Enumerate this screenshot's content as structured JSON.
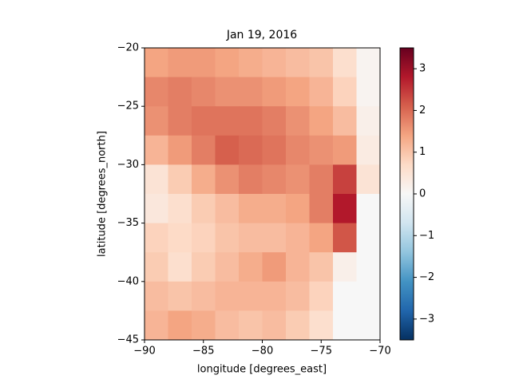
{
  "chart_data": {
    "type": "heatmap",
    "title": "Jan 19, 2016",
    "x_label": "longitude [degrees_east]",
    "y_label": "latitude [degrees_north]",
    "x_edges": [
      -90,
      -88,
      -86,
      -84,
      -82,
      -80,
      -78,
      -76,
      -74,
      -72,
      -70
    ],
    "y_edges": [
      -20,
      -22.5,
      -25,
      -27.5,
      -30,
      -32.5,
      -35,
      -37.5,
      -40,
      -42.5,
      -45
    ],
    "values": [
      [
        1.4,
        1.5,
        1.5,
        1.4,
        1.3,
        1.2,
        1.1,
        1.0,
        0.6,
        0.1
      ],
      [
        1.7,
        1.8,
        1.7,
        1.6,
        1.6,
        1.5,
        1.4,
        1.2,
        0.8,
        0.1
      ],
      [
        1.6,
        1.8,
        1.9,
        1.9,
        1.9,
        1.8,
        1.6,
        1.4,
        1.1,
        0.2
      ],
      [
        1.2,
        1.5,
        1.8,
        2.1,
        2.0,
        1.9,
        1.7,
        1.6,
        1.5,
        0.3
      ],
      [
        0.5,
        0.9,
        1.3,
        1.6,
        1.8,
        1.7,
        1.6,
        1.8,
        2.4,
        0.5
      ],
      [
        0.4,
        0.6,
        0.9,
        1.1,
        1.3,
        1.3,
        1.4,
        1.8,
        2.8,
        0
      ],
      [
        0.8,
        0.7,
        0.8,
        1.0,
        1.1,
        1.1,
        1.2,
        1.4,
        2.2,
        0
      ],
      [
        0.9,
        0.6,
        0.9,
        1.1,
        1.3,
        1.5,
        1.2,
        1.0,
        0.2,
        0
      ],
      [
        1.1,
        1.0,
        1.1,
        1.2,
        1.2,
        1.2,
        1.1,
        0.8,
        0,
        0
      ],
      [
        1.2,
        1.4,
        1.3,
        1.1,
        1.0,
        1.1,
        0.9,
        0.6,
        0,
        0
      ]
    ],
    "colormap": "RdBu_r",
    "xlim": [
      -90,
      -70
    ],
    "ylim": [
      -45,
      -20
    ],
    "zlim": [
      -3.5,
      3.5
    ],
    "xticks": [
      {
        "value": -90,
        "label": "−90"
      },
      {
        "value": -85,
        "label": "−85"
      },
      {
        "value": -80,
        "label": "−80"
      },
      {
        "value": -75,
        "label": "−75"
      },
      {
        "value": -70,
        "label": "−70"
      }
    ],
    "yticks": [
      {
        "value": -20,
        "label": "−20"
      },
      {
        "value": -25,
        "label": "−25"
      },
      {
        "value": -30,
        "label": "−30"
      },
      {
        "value": -35,
        "label": "−35"
      },
      {
        "value": -40,
        "label": "−40"
      },
      {
        "value": -45,
        "label": "−45"
      }
    ],
    "zticks": [
      {
        "value": -3,
        "label": "−3"
      },
      {
        "value": -2,
        "label": "−2"
      },
      {
        "value": -1,
        "label": "−1"
      },
      0,
      1,
      2,
      3
    ]
  }
}
